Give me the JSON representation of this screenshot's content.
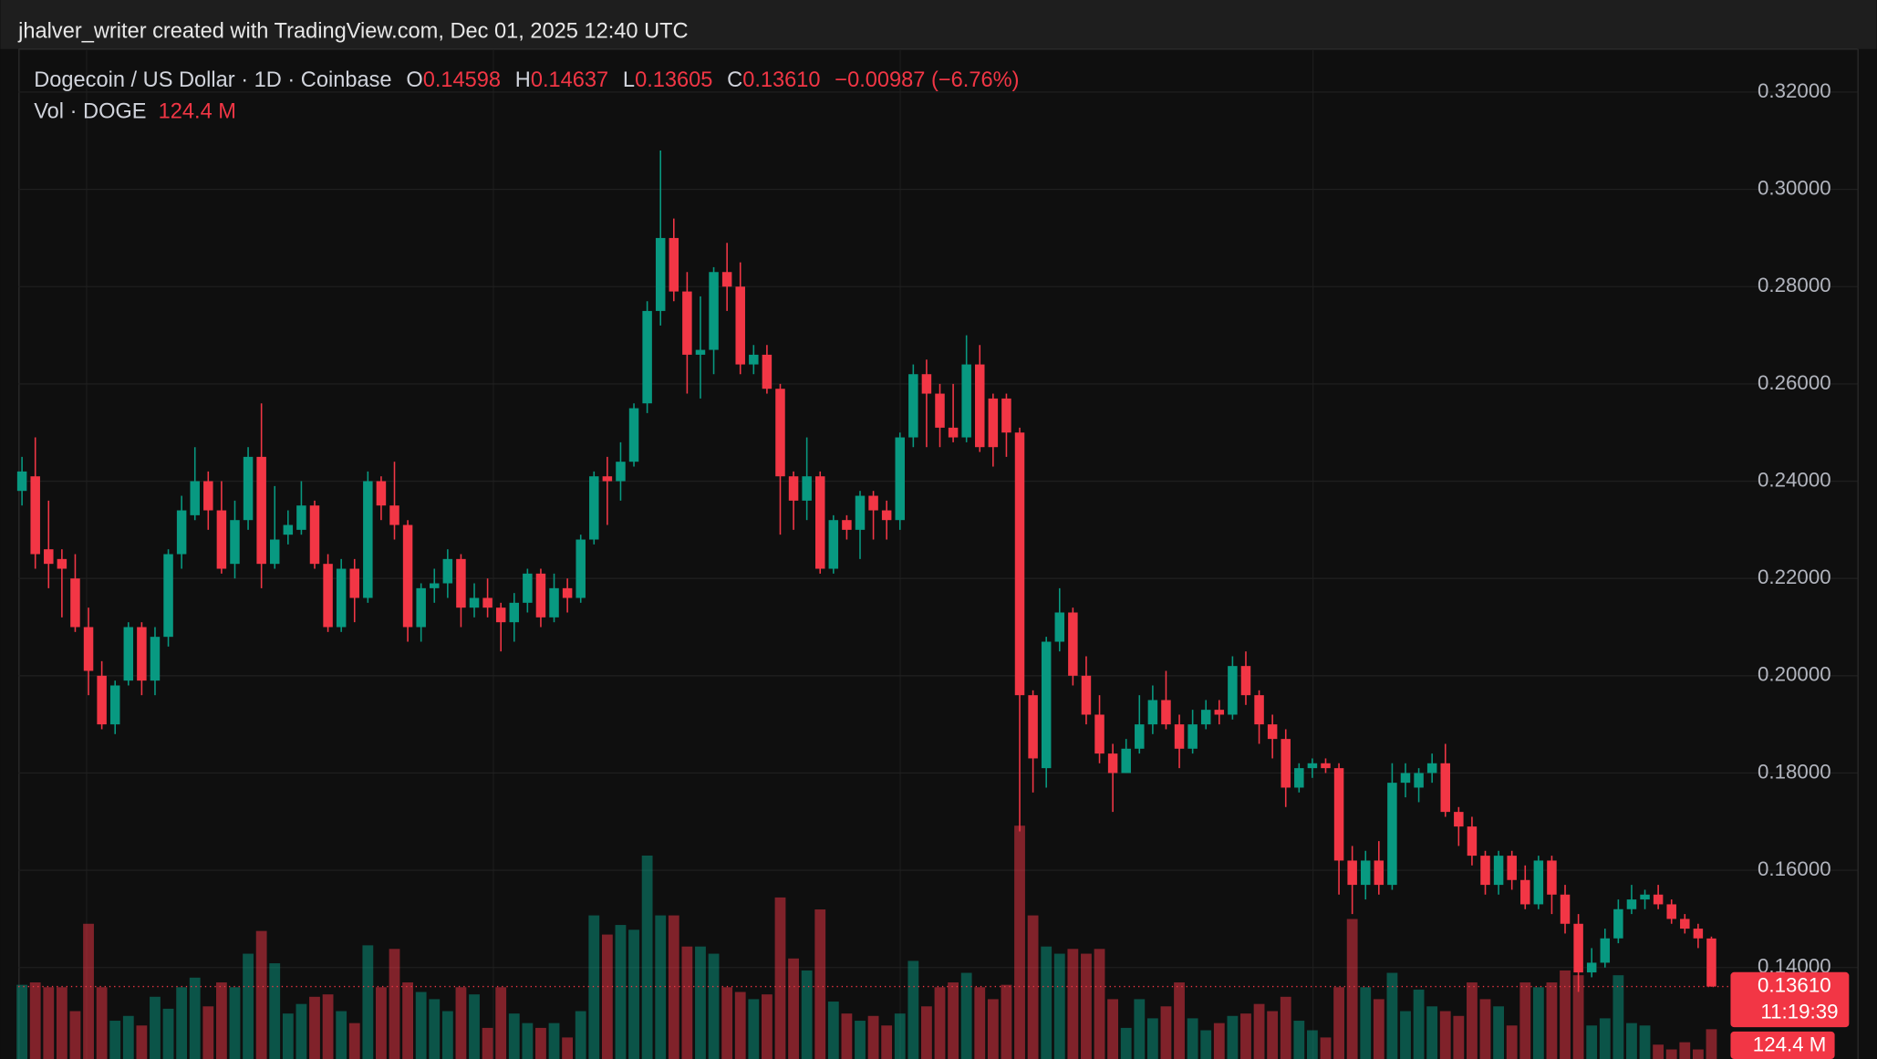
{
  "chart_data": {
    "type": "candlestick",
    "watermark": "jhalver_writer created with TradingView.com, Dec 01, 2025 12:40 UTC",
    "title": "Dogecoin / US Dollar · 1D · Coinbase",
    "legend_keys": [
      "O",
      "H",
      "L",
      "C"
    ],
    "last_value_labels": {
      "open": "0.14598",
      "high": "0.14637",
      "low": "0.13605",
      "close": "0.13610"
    },
    "change_label": "−0.00987 (−6.76%)",
    "volume_title": "Vol · DOGE",
    "volume_value_label": "124.4 M",
    "countdown": "11:19:39",
    "up_color": "#089981",
    "down_color": "#f23645",
    "grid": true,
    "ylim": [
      0.1212,
      0.3286
    ],
    "yticks": [
      {
        "value": 0.14,
        "label": "0.14000"
      },
      {
        "value": 0.16,
        "label": "0.16000"
      },
      {
        "value": 0.18,
        "label": "0.18000"
      },
      {
        "value": 0.2,
        "label": "0.20000"
      },
      {
        "value": 0.22,
        "label": "0.22000"
      },
      {
        "value": 0.24,
        "label": "0.24000"
      },
      {
        "value": 0.26,
        "label": "0.26000"
      },
      {
        "value": 0.28,
        "label": "0.28000"
      },
      {
        "value": 0.3,
        "label": "0.30000"
      },
      {
        "value": 0.32,
        "label": "0.32000"
      }
    ],
    "volume_ylim": [
      0,
      1000
    ],
    "open": [
      0.238,
      0.241,
      0.226,
      0.224,
      0.22,
      0.21,
      0.2,
      0.19,
      0.199,
      0.21,
      0.199,
      0.208,
      0.225,
      0.233,
      0.24,
      0.234,
      0.223,
      0.232,
      0.245,
      0.223,
      0.229,
      0.23,
      0.235,
      0.223,
      0.21,
      0.222,
      0.216,
      0.24,
      0.235,
      0.231,
      0.21,
      0.218,
      0.219,
      0.224,
      0.214,
      0.216,
      0.214,
      0.211,
      0.215,
      0.221,
      0.212,
      0.218,
      0.216,
      0.228,
      0.241,
      0.24,
      0.244,
      0.256,
      0.275,
      0.29,
      0.279,
      0.266,
      0.267,
      0.283,
      0.28,
      0.264,
      0.266,
      0.259,
      0.241,
      0.236,
      0.241,
      0.222,
      0.232,
      0.23,
      0.237,
      0.234,
      0.232,
      0.249,
      0.262,
      0.258,
      0.251,
      0.249,
      0.264,
      0.257,
      0.257,
      0.25,
      0.196,
      0.181,
      0.207,
      0.213,
      0.2,
      0.192,
      0.184,
      0.18,
      0.185,
      0.19,
      0.195,
      0.19,
      0.185,
      0.19,
      0.193,
      0.192,
      0.202,
      0.196,
      0.19,
      0.187,
      0.177,
      0.181,
      0.182,
      0.181,
      0.162,
      0.157,
      0.162,
      0.157,
      0.178,
      0.177,
      0.18,
      0.182,
      0.172,
      0.169,
      0.163,
      0.157,
      0.163,
      0.158,
      0.153,
      0.162,
      0.155,
      0.149,
      0.139,
      0.141,
      0.146,
      0.152,
      0.154,
      0.155,
      0.153,
      0.15,
      0.148,
      0.14598
    ],
    "high": [
      0.245,
      0.249,
      0.236,
      0.226,
      0.225,
      0.214,
      0.203,
      0.199,
      0.211,
      0.211,
      0.21,
      0.226,
      0.237,
      0.247,
      0.242,
      0.24,
      0.236,
      0.247,
      0.256,
      0.239,
      0.234,
      0.24,
      0.236,
      0.225,
      0.224,
      0.224,
      0.242,
      0.241,
      0.244,
      0.232,
      0.219,
      0.222,
      0.226,
      0.225,
      0.219,
      0.22,
      0.215,
      0.217,
      0.222,
      0.222,
      0.221,
      0.22,
      0.229,
      0.242,
      0.245,
      0.248,
      0.256,
      0.277,
      0.308,
      0.294,
      0.283,
      0.278,
      0.284,
      0.289,
      0.285,
      0.268,
      0.268,
      0.26,
      0.242,
      0.249,
      0.242,
      0.233,
      0.233,
      0.238,
      0.238,
      0.236,
      0.25,
      0.264,
      0.265,
      0.26,
      0.26,
      0.27,
      0.268,
      0.258,
      0.258,
      0.251,
      0.197,
      0.208,
      0.218,
      0.214,
      0.204,
      0.196,
      0.186,
      0.187,
      0.196,
      0.198,
      0.201,
      0.192,
      0.193,
      0.195,
      0.195,
      0.204,
      0.205,
      0.197,
      0.192,
      0.189,
      0.182,
      0.183,
      0.183,
      0.182,
      0.165,
      0.164,
      0.166,
      0.182,
      0.182,
      0.181,
      0.184,
      0.186,
      0.173,
      0.171,
      0.164,
      0.164,
      0.164,
      0.161,
      0.163,
      0.163,
      0.157,
      0.151,
      0.144,
      0.148,
      0.154,
      0.157,
      0.156,
      0.157,
      0.154,
      0.151,
      0.149,
      0.14637
    ],
    "low": [
      0.235,
      0.222,
      0.218,
      0.212,
      0.209,
      0.196,
      0.189,
      0.188,
      0.198,
      0.196,
      0.196,
      0.206,
      0.222,
      0.232,
      0.23,
      0.221,
      0.22,
      0.23,
      0.218,
      0.222,
      0.227,
      0.229,
      0.222,
      0.209,
      0.209,
      0.211,
      0.215,
      0.232,
      0.228,
      0.207,
      0.207,
      0.215,
      0.216,
      0.21,
      0.212,
      0.212,
      0.205,
      0.207,
      0.213,
      0.21,
      0.211,
      0.213,
      0.215,
      0.227,
      0.231,
      0.236,
      0.243,
      0.254,
      0.272,
      0.277,
      0.258,
      0.257,
      0.262,
      0.275,
      0.262,
      0.262,
      0.258,
      0.229,
      0.23,
      0.232,
      0.221,
      0.221,
      0.228,
      0.224,
      0.228,
      0.228,
      0.23,
      0.247,
      0.247,
      0.247,
      0.248,
      0.248,
      0.246,
      0.243,
      0.245,
      0.168,
      0.176,
      0.177,
      0.205,
      0.198,
      0.19,
      0.182,
      0.172,
      0.18,
      0.184,
      0.188,
      0.189,
      0.181,
      0.184,
      0.189,
      0.19,
      0.191,
      0.194,
      0.186,
      0.183,
      0.173,
      0.176,
      0.179,
      0.18,
      0.155,
      0.151,
      0.154,
      0.155,
      0.156,
      0.175,
      0.174,
      0.178,
      0.171,
      0.165,
      0.161,
      0.155,
      0.155,
      0.156,
      0.152,
      0.152,
      0.151,
      0.147,
      0.135,
      0.138,
      0.14,
      0.145,
      0.151,
      0.152,
      0.152,
      0.149,
      0.147,
      0.144,
      0.13605
    ],
    "close": [
      0.242,
      0.225,
      0.223,
      0.222,
      0.21,
      0.201,
      0.19,
      0.198,
      0.21,
      0.199,
      0.208,
      0.225,
      0.234,
      0.24,
      0.234,
      0.222,
      0.232,
      0.245,
      0.223,
      0.228,
      0.231,
      0.235,
      0.223,
      0.21,
      0.222,
      0.216,
      0.24,
      0.235,
      0.231,
      0.21,
      0.218,
      0.219,
      0.224,
      0.214,
      0.216,
      0.214,
      0.211,
      0.215,
      0.221,
      0.212,
      0.218,
      0.216,
      0.228,
      0.241,
      0.24,
      0.244,
      0.255,
      0.275,
      0.29,
      0.279,
      0.266,
      0.267,
      0.283,
      0.28,
      0.264,
      0.266,
      0.259,
      0.241,
      0.236,
      0.241,
      0.222,
      0.232,
      0.23,
      0.237,
      0.234,
      0.232,
      0.249,
      0.262,
      0.258,
      0.251,
      0.249,
      0.264,
      0.247,
      0.247,
      0.25,
      0.196,
      0.183,
      0.207,
      0.213,
      0.2,
      0.192,
      0.184,
      0.18,
      0.185,
      0.19,
      0.195,
      0.19,
      0.185,
      0.19,
      0.193,
      0.192,
      0.202,
      0.196,
      0.19,
      0.187,
      0.177,
      0.181,
      0.182,
      0.181,
      0.162,
      0.157,
      0.162,
      0.157,
      0.178,
      0.18,
      0.18,
      0.182,
      0.172,
      0.169,
      0.163,
      0.157,
      0.163,
      0.158,
      0.153,
      0.162,
      0.155,
      0.149,
      0.139,
      0.141,
      0.146,
      0.152,
      0.154,
      0.155,
      0.153,
      0.15,
      0.148,
      0.146,
      0.1361
    ],
    "volume": [
      310,
      320,
      300,
      300,
      200,
      565,
      300,
      160,
      180,
      140,
      260,
      210,
      300,
      340,
      220,
      320,
      300,
      440,
      535,
      400,
      190,
      230,
      260,
      270,
      200,
      150,
      475,
      300,
      460,
      320,
      280,
      250,
      200,
      300,
      270,
      130,
      300,
      190,
      150,
      130,
      150,
      90,
      200,
      600,
      520,
      560,
      540,
      850,
      600,
      600,
      470,
      470,
      440,
      300,
      280,
      250,
      270,
      675,
      420,
      370,
      625,
      240,
      190,
      160,
      180,
      140,
      190,
      410,
      220,
      300,
      320,
      360,
      300,
      250,
      310,
      975,
      600,
      470,
      440,
      460,
      440,
      460,
      250,
      130,
      250,
      170,
      220,
      320,
      170,
      120,
      150,
      180,
      190,
      230,
      200,
      260,
      160,
      120,
      90,
      300,
      585,
      300,
      250,
      360,
      200,
      290,
      220,
      200,
      180,
      320,
      250,
      220,
      140,
      320,
      300,
      320,
      370,
      350,
      140,
      170,
      350,
      150,
      140,
      60,
      40,
      70,
      40,
      124.4
    ]
  }
}
